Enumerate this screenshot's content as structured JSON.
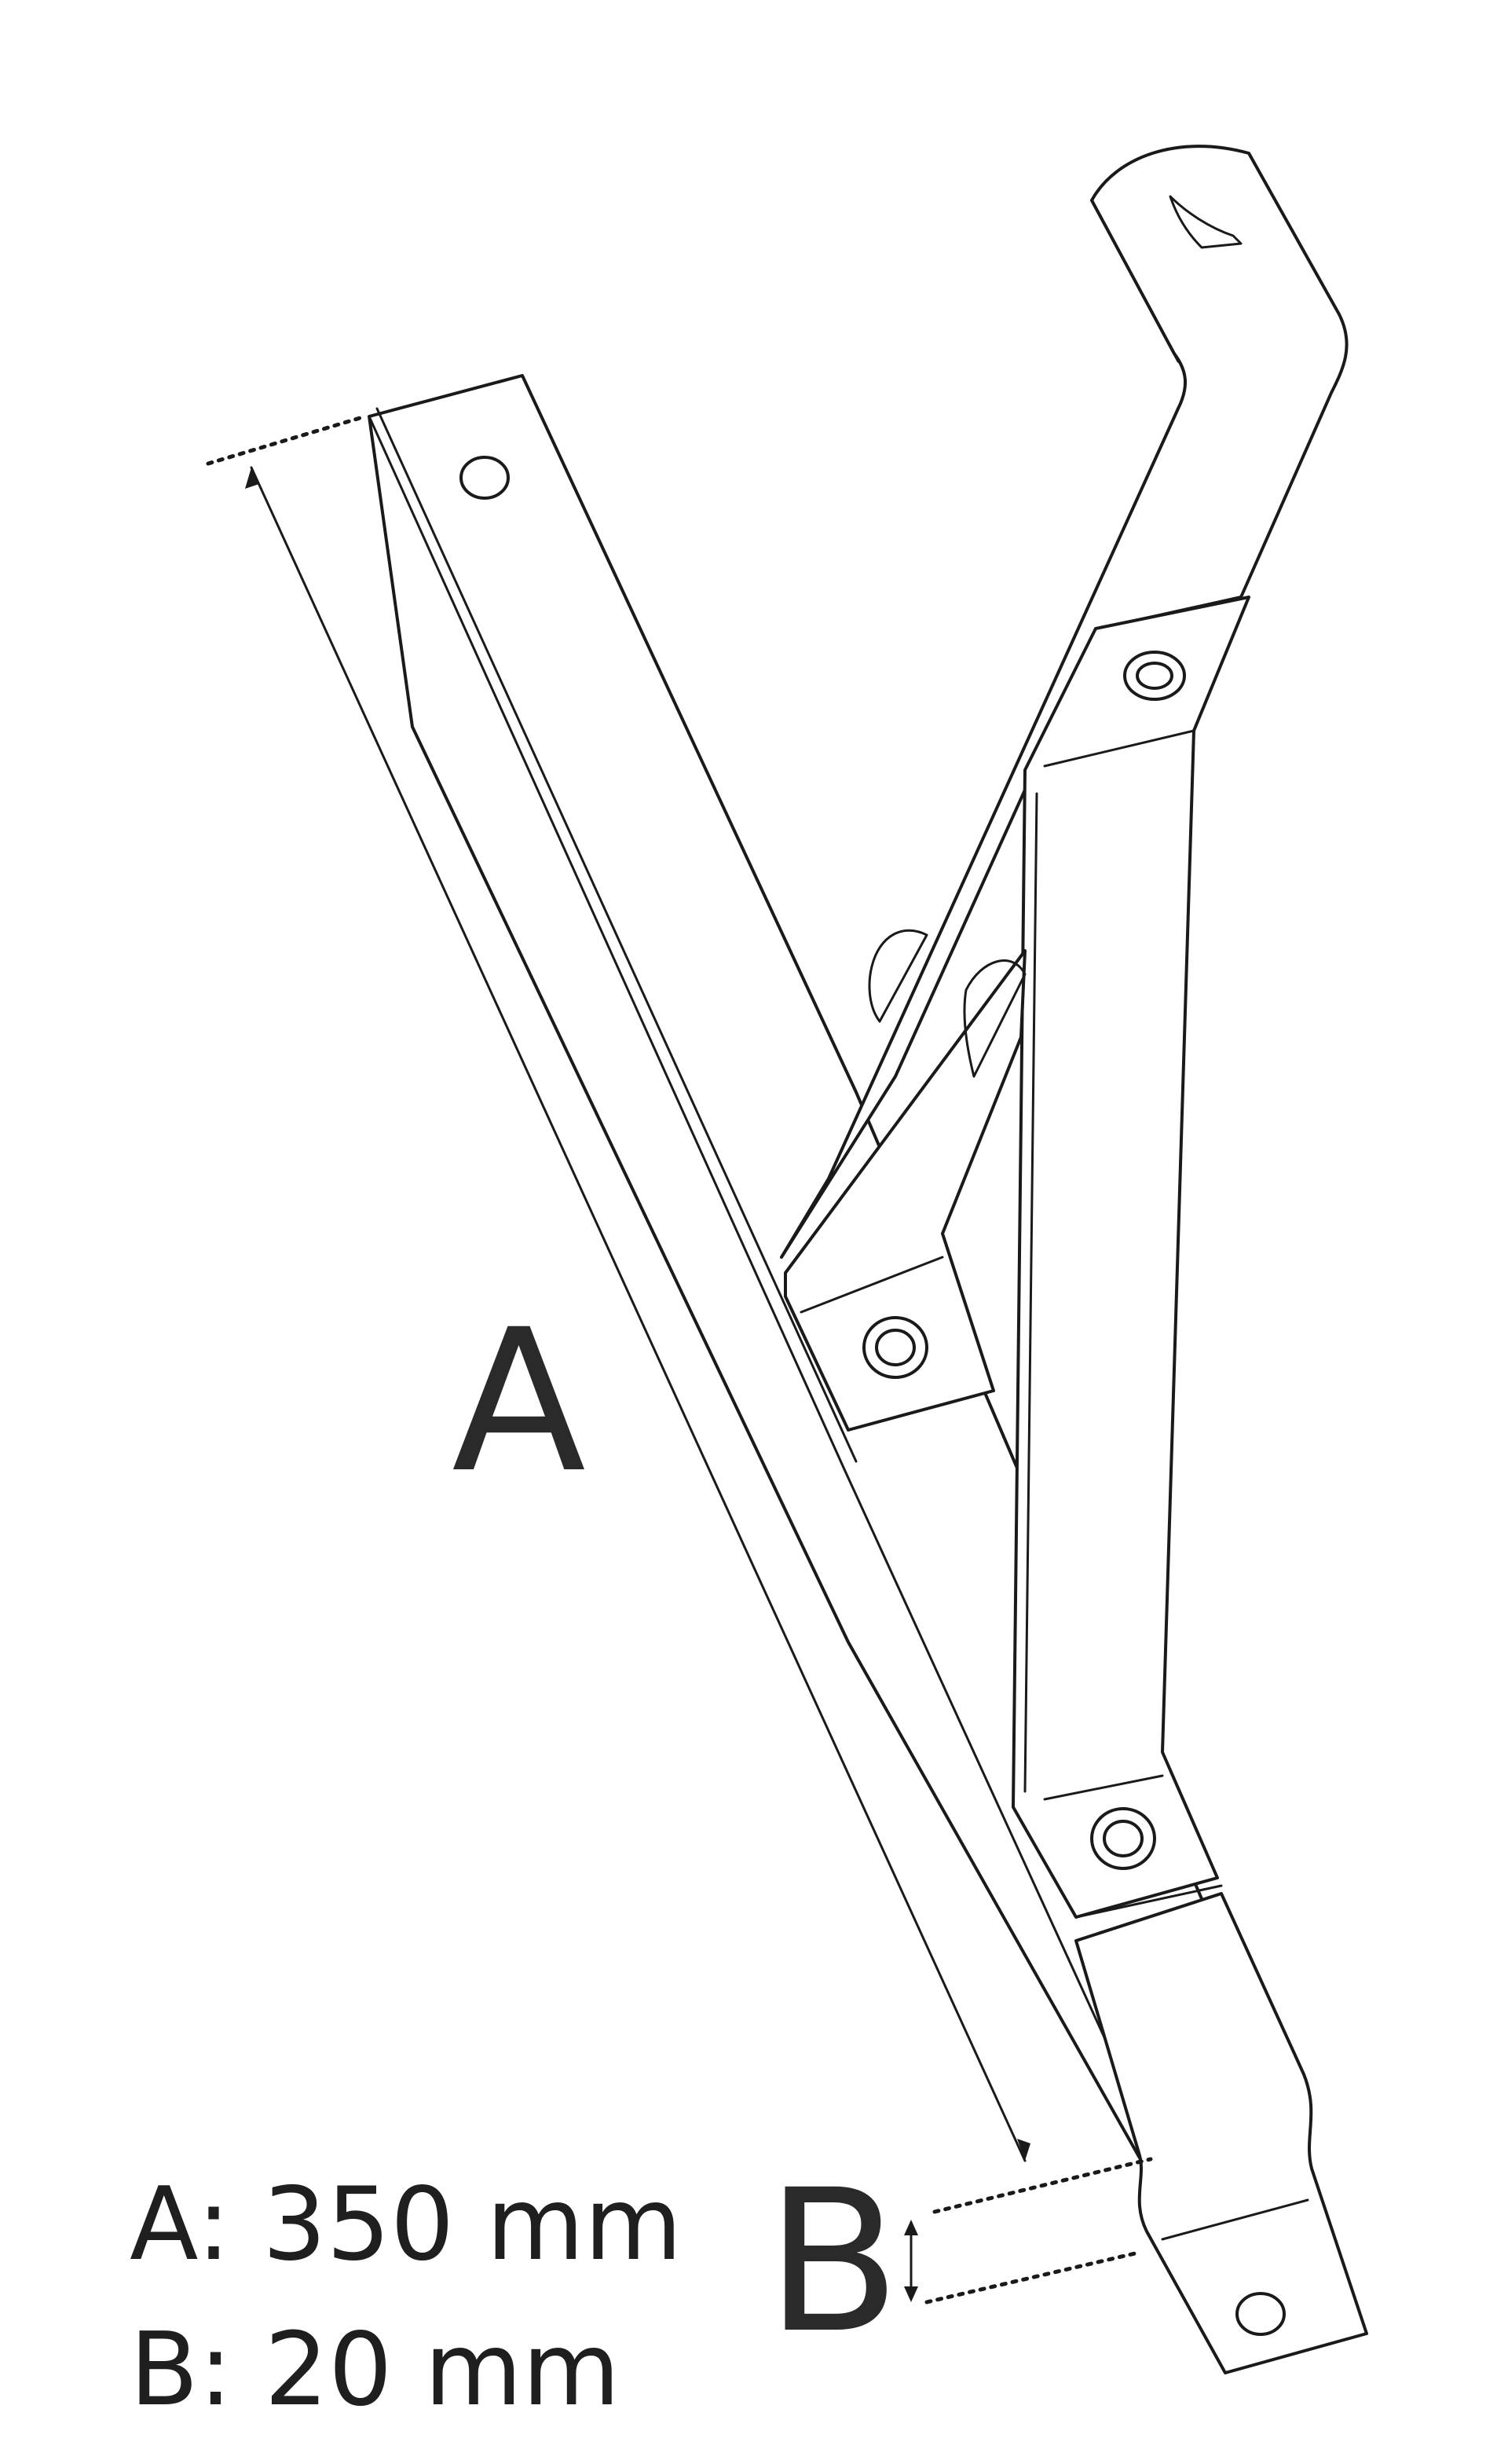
{
  "labels": {
    "dimension_a": "A",
    "dimension_b": "B"
  },
  "specs": [
    {
      "line": "A: 350 mm"
    },
    {
      "line": "B: 20 mm"
    }
  ]
}
